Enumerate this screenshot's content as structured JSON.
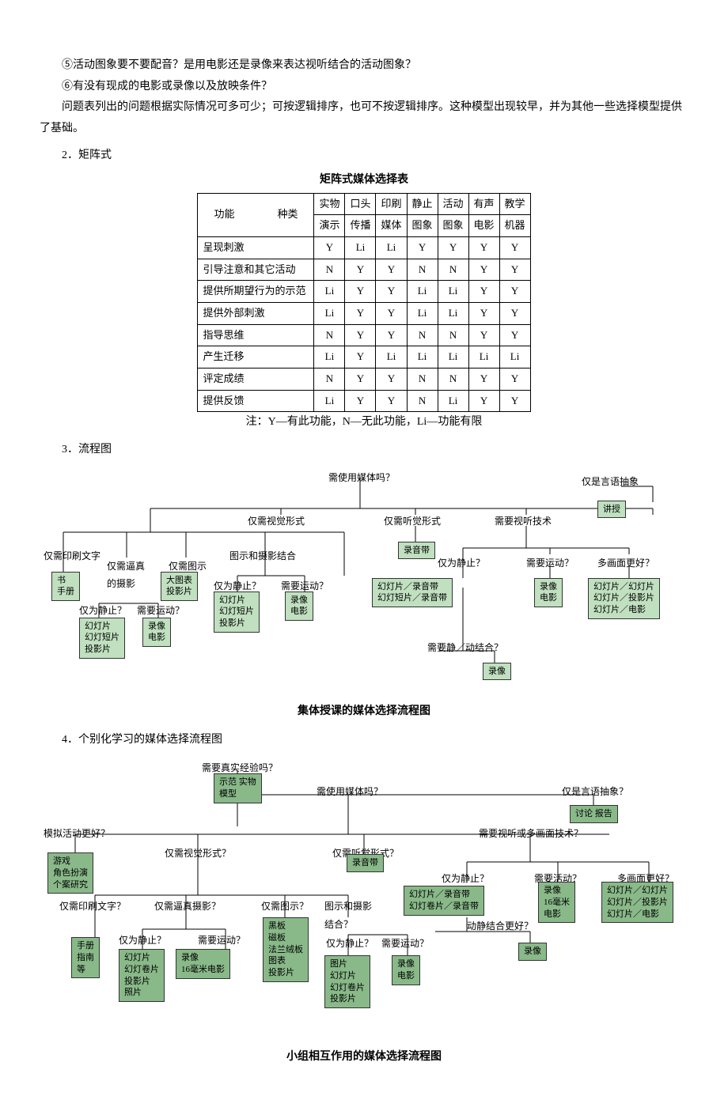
{
  "paragraphs": {
    "p5": "⑤活动图象要不要配音？是用电影还是录像来表达视听结合的活动图象？",
    "p6": "⑥有没有现成的电影或录像以及放映条件？",
    "note": "问题表列出的问题根据实际情况可多可少；可按逻辑排序，也可不按逻辑排序。这种模型出现较早，并为其他一些选择模型提供了基础。"
  },
  "sections": {
    "s2": "2．矩阵式",
    "s3": "3．流程图",
    "s4": "4．个别化学习的媒体选择流程图"
  },
  "matrix": {
    "title": "矩阵式媒体选择表",
    "header_func": "功能",
    "header_kind": "种类",
    "columns": [
      {
        "l1": "实物",
        "l2": "演示"
      },
      {
        "l1": "口头",
        "l2": "传播"
      },
      {
        "l1": "印刷",
        "l2": "媒体"
      },
      {
        "l1": "静止",
        "l2": "图象"
      },
      {
        "l1": "活动",
        "l2": "图象"
      },
      {
        "l1": "有声",
        "l2": "电影"
      },
      {
        "l1": "教学",
        "l2": "机器"
      }
    ],
    "rows": [
      {
        "label": "呈现刺激",
        "cells": [
          "Y",
          "Li",
          "Li",
          "Y",
          "Y",
          "Y",
          "Y"
        ]
      },
      {
        "label": "引导注意和其它活动",
        "cells": [
          "N",
          "Y",
          "Y",
          "N",
          "N",
          "Y",
          "Y"
        ]
      },
      {
        "label": "提供所期望行为的示范",
        "cells": [
          "Li",
          "Y",
          "Y",
          "Li",
          "Li",
          "Y",
          "Y"
        ]
      },
      {
        "label": "提供外部刺激",
        "cells": [
          "Li",
          "Y",
          "Y",
          "Li",
          "Li",
          "Y",
          "Y"
        ]
      },
      {
        "label": "指导思维",
        "cells": [
          "N",
          "Y",
          "Y",
          "N",
          "N",
          "Y",
          "Y"
        ]
      },
      {
        "label": "产生迁移",
        "cells": [
          "Li",
          "Y",
          "Li",
          "Li",
          "Li",
          "Li",
          "Li"
        ]
      },
      {
        "label": "评定成绩",
        "cells": [
          "N",
          "Y",
          "Y",
          "N",
          "N",
          "Y",
          "Y"
        ]
      },
      {
        "label": "提供反馈",
        "cells": [
          "Li",
          "Y",
          "Y",
          "N",
          "Li",
          "Y",
          "Y"
        ]
      }
    ],
    "legend": "注：Y—有此功能，N—无此功能，Li—功能有限"
  },
  "flow1": {
    "title": "集体授课的媒体选择流程图",
    "nodes": {
      "q_top": "需使用媒体吗？",
      "q_vis": "仅需视觉形式",
      "q_aud": "仅需听觉形式",
      "q_abs": "仅是言语抽象",
      "q_avt": "需要视听技术",
      "n_lecture": "讲授",
      "n_tape": "录音带",
      "q_print": "仅需印刷文字",
      "q_photo": "仅需逼真\n的摄影",
      "q_diag": "仅需图示",
      "q_combo": "图示和摄影结合",
      "q_still1": "仅为静止？",
      "q_move1a": "仅为静止？",
      "q_move1b": "需要运动？",
      "q_move2a": "仅为静止？",
      "q_move2b": "需要运动？",
      "q_move3": "需要运动？",
      "q_multi": "多画面更好？",
      "q_sdmix": "需要静／动结合？",
      "n_book": "书\n手册",
      "n_chart": "大图表\n投影片",
      "n_slide1": "幻灯片\n幻灯短片\n投影片",
      "n_video1": "录像\n电影",
      "n_slide2": "幻灯片\n幻灯短片\n投影片",
      "n_video2": "录像\n电影",
      "n_slide3": "幻灯片／录音带\n幻灯短片／录音带",
      "n_video3": "录像\n电影",
      "n_slide4": "幻灯片／幻灯片\n幻灯片／投影片\n幻灯片／电影",
      "n_video4": "录像"
    }
  },
  "flow2": {
    "title": "小组相互作用的媒体选择流程图",
    "nodes": {
      "q_exp": "需要真实经验吗？",
      "n_demo": "示范 实物\n模型",
      "q_media": "需使用媒体吗？",
      "q_abs": "仅是言语抽象？",
      "n_disc": "讨论 报告",
      "q_sim": "模拟活动更好？",
      "q_vis": "仅需视觉形式？",
      "q_aud": "仅需听觉形式？",
      "q_avt": "需要视听或多画面技术？",
      "n_game": "游戏\n角色扮演\n个案研究",
      "n_tape": "录音带",
      "q_still": "仅为静止？",
      "q_act": "需要活动？",
      "q_multi": "多画面更好？",
      "q_print": "仅需印刷文字？",
      "q_photo": "仅需逼真摄影？",
      "q_diag": "仅需图示？",
      "q_combo": "图示和摄影\n结合？",
      "n_slidetape": "幻灯片／录音带\n幻灯卷片／录音带",
      "q_sdmix": "动静结合更好？",
      "n_video3": "录像\n16毫米\n电影",
      "n_slidemix": "幻灯片／幻灯片\n幻灯片／投影片\n幻灯片／电影",
      "n_video4": "录像",
      "n_manual": "手册\n指南\n等",
      "q_move1a": "仅为静止？",
      "q_move1b": "需要运动？",
      "q_move2a": "仅为静止？",
      "q_move2b": "需要运动？",
      "n_board": "黑板\n磁板\n法兰绒板\n图表\n投影片",
      "n_slide1": "幻灯片\n幻灯卷片\n投影片\n照片",
      "n_video1": "录像\n16毫米电影",
      "n_pic": "图片\n幻灯片\n幻灯卷片\n投影片",
      "n_video2": "录像\n电影"
    }
  }
}
